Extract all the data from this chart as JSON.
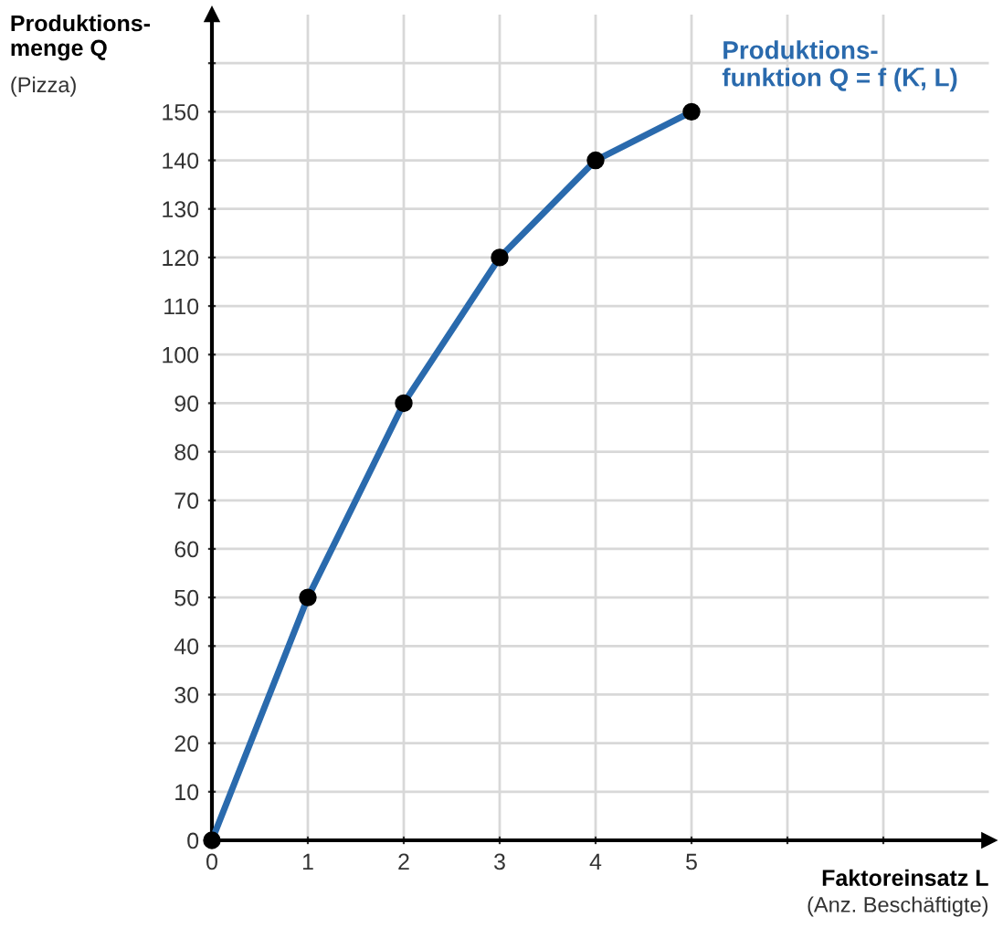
{
  "chart_data": {
    "type": "line",
    "xlabel": "Faktoreinsatz L",
    "ylabel": "Produktions-\nmenge Q",
    "annotations": [
      "(Pizza)",
      "(Anz. Beschäftigte)"
    ],
    "x": [
      0,
      1,
      2,
      3,
      4,
      5
    ],
    "series": [
      {
        "name": "Produktions-\nfunktion Q = f (K̄, L)",
        "color": "#2a6aad",
        "values": [
          0,
          50,
          90,
          120,
          140,
          150
        ]
      }
    ],
    "marker": "circle",
    "line_style": "solid",
    "xlim": [
      0,
      8.1
    ],
    "ylim": [
      0,
      170
    ],
    "xticks": [
      0,
      1,
      2,
      3,
      4,
      5,
      {
        "value": 6,
        "label": null
      },
      {
        "value": 7,
        "label": null
      }
    ],
    "yticks": [
      0,
      10,
      20,
      30,
      40,
      50,
      60,
      70,
      80,
      90,
      100,
      110,
      120,
      130,
      140,
      150,
      {
        "value": 160,
        "label": null
      }
    ],
    "grid": true,
    "legend": false
  }
}
